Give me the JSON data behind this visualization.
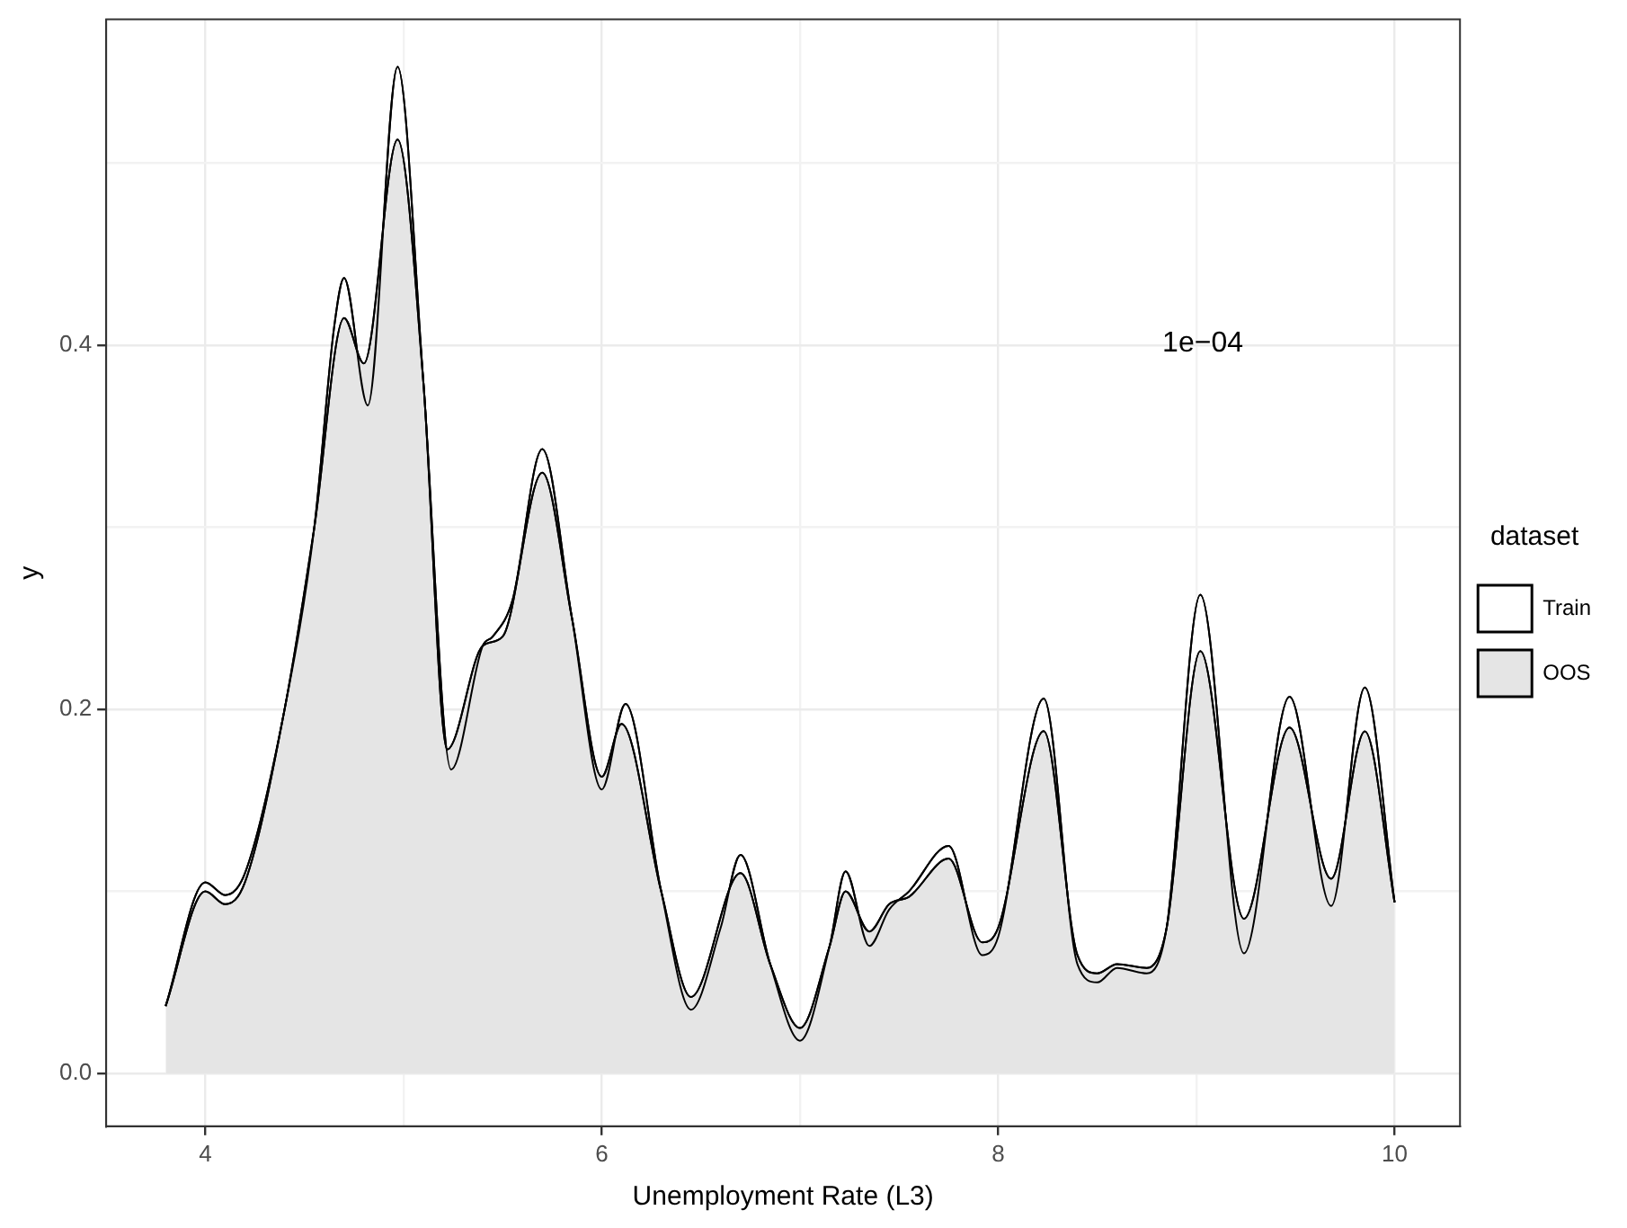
{
  "chart_data": {
    "type": "area",
    "xlabel": "Unemployment Rate (L3)",
    "ylabel": "y",
    "legend_title": "dataset",
    "legend": "right",
    "grid": true,
    "annotations": [
      "1e−04"
    ],
    "xlim": [
      3.5,
      10.33
    ],
    "xticks": [
      4,
      {
        "value": 5,
        "label": null
      },
      6,
      {
        "value": 7,
        "label": null
      },
      8,
      {
        "value": 9,
        "label": null
      },
      10
    ],
    "ylim": [
      -0.029,
      0.579
    ],
    "yticks": [
      {
        "value": 0,
        "label": "0.0"
      },
      {
        "value": 0.1,
        "label": null
      },
      0.2,
      {
        "value": 0.3,
        "label": null
      },
      0.4,
      {
        "value": 0.5,
        "label": null
      }
    ],
    "series": [
      {
        "name": "Train",
        "color": "#ffffff",
        "x": [
          3.8,
          4.0,
          4.1,
          4.2,
          4.4,
          4.55,
          4.65,
          4.7,
          4.82,
          4.97,
          5.1,
          5.24,
          5.4,
          5.45,
          5.55,
          5.7,
          5.85,
          6.0,
          6.12,
          6.3,
          6.45,
          6.6,
          6.7,
          6.85,
          7.0,
          7.15,
          7.23,
          7.35,
          7.45,
          7.55,
          7.75,
          7.92,
          8.0,
          8.23,
          8.4,
          8.5,
          8.6,
          8.75,
          8.85,
          9.02,
          9.24,
          9.47,
          9.68,
          9.85,
          10.0
        ],
        "values": [
          0.037,
          0.105,
          0.098,
          0.11,
          0.2,
          0.3,
          0.41,
          0.437,
          0.367,
          0.553,
          0.38,
          0.167,
          0.235,
          0.24,
          0.26,
          0.343,
          0.25,
          0.156,
          0.203,
          0.1,
          0.035,
          0.08,
          0.12,
          0.06,
          0.018,
          0.07,
          0.111,
          0.07,
          0.09,
          0.1,
          0.125,
          0.065,
          0.075,
          0.206,
          0.06,
          0.05,
          0.058,
          0.055,
          0.08,
          0.263,
          0.066,
          0.207,
          0.092,
          0.212,
          0.094
        ]
      },
      {
        "name": "OOS",
        "color": "#e5e5e5",
        "x": [
          3.8,
          4.0,
          4.1,
          4.2,
          4.4,
          4.55,
          4.7,
          4.8,
          4.97,
          5.1,
          5.22,
          5.4,
          5.5,
          5.7,
          5.85,
          6.0,
          6.1,
          6.3,
          6.45,
          6.7,
          6.85,
          7.0,
          7.15,
          7.23,
          7.35,
          7.45,
          7.55,
          7.75,
          7.92,
          8.0,
          8.23,
          8.4,
          8.5,
          8.6,
          8.75,
          8.85,
          9.02,
          9.24,
          9.47,
          9.68,
          9.85,
          10.0
        ],
        "values": [
          0.037,
          0.1,
          0.093,
          0.105,
          0.2,
          0.3,
          0.415,
          0.39,
          0.513,
          0.38,
          0.178,
          0.235,
          0.24,
          0.33,
          0.25,
          0.163,
          0.192,
          0.1,
          0.042,
          0.11,
          0.06,
          0.025,
          0.07,
          0.1,
          0.078,
          0.093,
          0.097,
          0.118,
          0.072,
          0.08,
          0.188,
          0.065,
          0.055,
          0.06,
          0.058,
          0.08,
          0.232,
          0.085,
          0.19,
          0.107,
          0.188,
          0.094
        ]
      }
    ]
  }
}
